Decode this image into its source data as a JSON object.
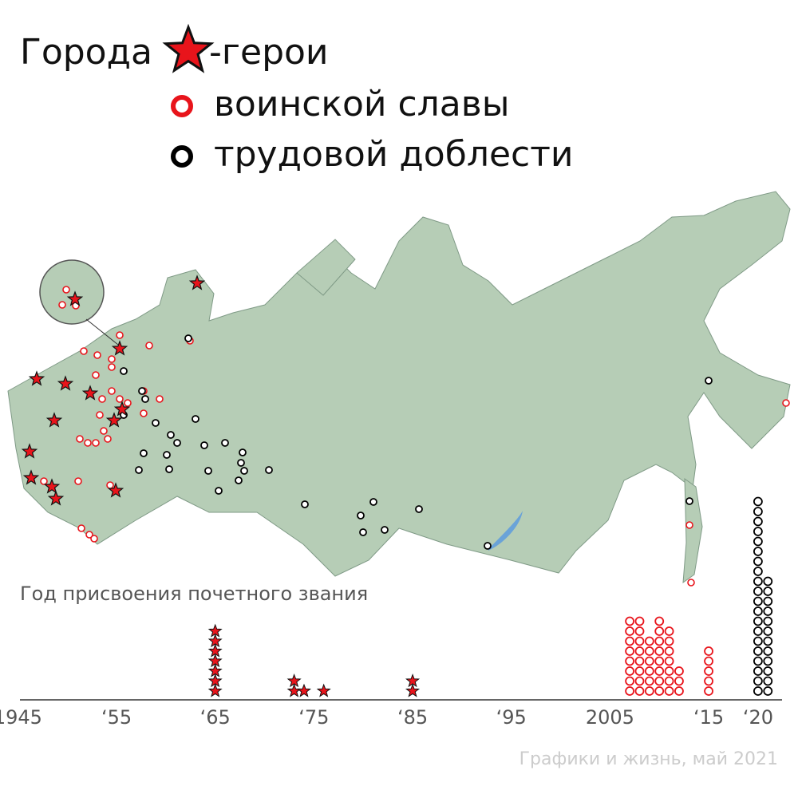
{
  "chart_data": {
    "type": "dot-stack",
    "title": "Города",
    "title_suffix": "-герои",
    "subtitle": "Год присвоения почетного звания",
    "source": "Графики и жизнь, май 2021",
    "xlim": [
      1944,
      2023
    ],
    "xticks": [
      {
        "value": 1945,
        "label": "1945"
      },
      {
        "value": 1955,
        "label": "‘55"
      },
      {
        "value": 1965,
        "label": "‘65"
      },
      {
        "value": 1975,
        "label": "‘75"
      },
      {
        "value": 1985,
        "label": "‘85"
      },
      {
        "value": 1995,
        "label": "‘95"
      },
      {
        "value": 2005,
        "label": "2005"
      },
      {
        "value": 2015,
        "label": "‘15"
      },
      {
        "value": 2020,
        "label": "‘20"
      }
    ],
    "series": [
      {
        "name": "-герои",
        "marker": "star",
        "color": "#e8141b",
        "x": [
          1965,
          1973,
          1974,
          1976,
          1985
        ],
        "values": [
          7,
          2,
          1,
          1,
          2
        ]
      },
      {
        "name": "воинской славы",
        "marker": "ring",
        "color": "#e8141b",
        "x": [
          2007,
          2008,
          2009,
          2010,
          2011,
          2012,
          2015
        ],
        "values": [
          8,
          8,
          6,
          8,
          7,
          3,
          5
        ]
      },
      {
        "name": "трудовой доблести",
        "marker": "ring",
        "color": "#000000",
        "x": [
          2020,
          2021
        ],
        "values": [
          20,
          12
        ]
      }
    ]
  }
}
